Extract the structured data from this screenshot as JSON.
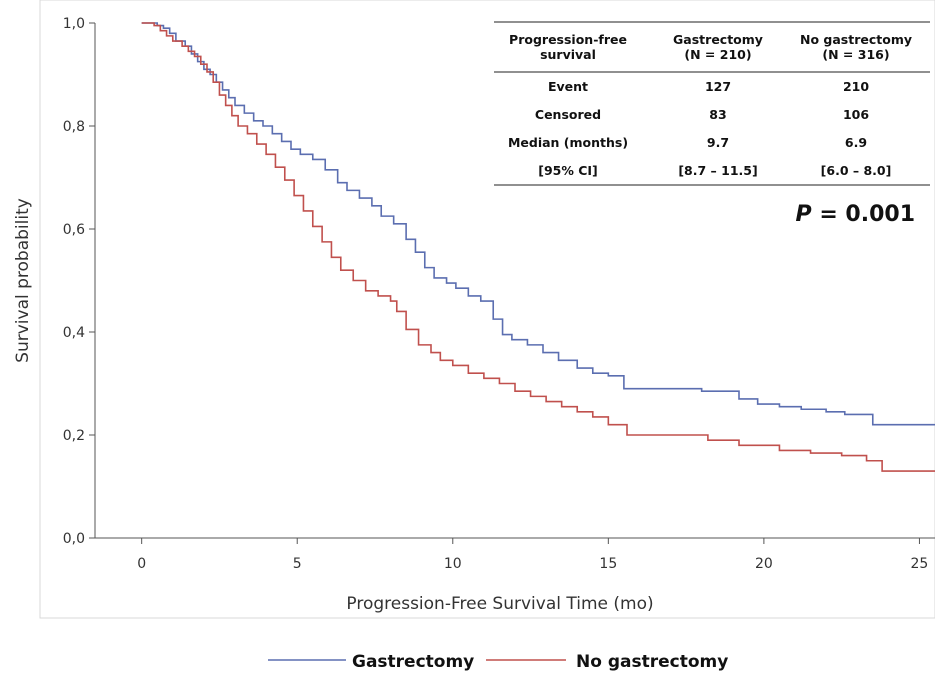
{
  "chart_data": {
    "type": "line",
    "step": true,
    "xlabel": "Progression-Free Survival Time (mo)",
    "ylabel": "Survival probability",
    "xlim": [
      -1.5,
      25.5
    ],
    "ylim": [
      0.0,
      1.0
    ],
    "x_ticks": [
      0,
      5,
      10,
      15,
      20,
      25
    ],
    "x_tick_labels": [
      "0",
      "5",
      "10",
      "15",
      "20",
      "25"
    ],
    "y_ticks": [
      0.0,
      0.2,
      0.4,
      0.6,
      0.8,
      1.0
    ],
    "y_tick_labels": [
      "0,0",
      "0,2",
      "0,4",
      "0,6",
      "0,8",
      "1,0"
    ],
    "series": [
      {
        "name": "Gastrectomy",
        "color": "#5b6eb0",
        "x": [
          0,
          0.5,
          0.7,
          0.9,
          1.1,
          1.4,
          1.6,
          1.8,
          2.0,
          2.2,
          2.4,
          2.6,
          2.8,
          3.0,
          3.3,
          3.6,
          3.9,
          4.2,
          4.5,
          4.8,
          5.1,
          5.5,
          5.9,
          6.3,
          6.6,
          7.0,
          7.4,
          7.7,
          8.1,
          8.5,
          8.8,
          9.1,
          9.4,
          9.8,
          10.1,
          10.5,
          10.9,
          11.3,
          11.6,
          11.9,
          12.4,
          12.9,
          13.4,
          14.0,
          14.5,
          15.0,
          15.5,
          16.5,
          18.0,
          19.2,
          19.8,
          20.5,
          21.2,
          22.0,
          22.6,
          23.5,
          25.5
        ],
        "y": [
          1.0,
          0.995,
          0.99,
          0.98,
          0.965,
          0.955,
          0.94,
          0.925,
          0.91,
          0.9,
          0.885,
          0.87,
          0.855,
          0.84,
          0.825,
          0.81,
          0.8,
          0.785,
          0.77,
          0.755,
          0.745,
          0.735,
          0.715,
          0.69,
          0.675,
          0.66,
          0.645,
          0.625,
          0.61,
          0.58,
          0.555,
          0.525,
          0.505,
          0.495,
          0.485,
          0.47,
          0.46,
          0.425,
          0.395,
          0.385,
          0.375,
          0.36,
          0.345,
          0.33,
          0.32,
          0.315,
          0.29,
          0.29,
          0.285,
          0.27,
          0.26,
          0.255,
          0.25,
          0.245,
          0.24,
          0.22,
          0.22
        ]
      },
      {
        "name": "No gastrectomy",
        "color": "#c0504d",
        "x": [
          0,
          0.4,
          0.6,
          0.8,
          1.0,
          1.3,
          1.5,
          1.7,
          1.9,
          2.1,
          2.3,
          2.5,
          2.7,
          2.9,
          3.1,
          3.4,
          3.7,
          4.0,
          4.3,
          4.6,
          4.9,
          5.2,
          5.5,
          5.8,
          6.1,
          6.4,
          6.8,
          7.2,
          7.6,
          8.0,
          8.2,
          8.5,
          8.9,
          9.3,
          9.6,
          10.0,
          10.5,
          11.0,
          11.5,
          12.0,
          12.5,
          13.0,
          13.5,
          14.0,
          14.5,
          15.0,
          15.6,
          17.0,
          18.2,
          19.2,
          20.5,
          21.5,
          22.5,
          23.3,
          23.8,
          25.5
        ],
        "y": [
          1.0,
          0.995,
          0.985,
          0.975,
          0.965,
          0.955,
          0.945,
          0.935,
          0.92,
          0.905,
          0.885,
          0.86,
          0.84,
          0.82,
          0.8,
          0.785,
          0.765,
          0.745,
          0.72,
          0.695,
          0.665,
          0.635,
          0.605,
          0.575,
          0.545,
          0.52,
          0.5,
          0.48,
          0.47,
          0.46,
          0.44,
          0.405,
          0.375,
          0.36,
          0.345,
          0.335,
          0.32,
          0.31,
          0.3,
          0.285,
          0.275,
          0.265,
          0.255,
          0.245,
          0.235,
          0.22,
          0.2,
          0.2,
          0.19,
          0.18,
          0.17,
          0.165,
          0.16,
          0.15,
          0.13,
          0.13
        ]
      }
    ],
    "legend": {
      "placement": "bottom",
      "entries": [
        "Gastrectomy",
        "No gastrectomy"
      ]
    },
    "grid": false,
    "table": {
      "placement": "top-right",
      "header": [
        "Progression-free\nsurvival",
        "Gastrectomy\n(N = 210)",
        "No gastrectomy\n(N = 316)"
      ],
      "rows": [
        [
          "Event",
          "127",
          "210"
        ],
        [
          "Censored",
          "83",
          "106"
        ],
        [
          "Median (months)",
          "9.7",
          "6.9"
        ],
        [
          "[95% CI]",
          "[8.7 – 11.5]",
          "[6.0 – 8.0]"
        ]
      ]
    },
    "annotation": {
      "p_label": "P",
      "p_value": "= 0.001"
    },
    "colors": {
      "axis": "#555555",
      "frame": "#cccccc"
    }
  }
}
